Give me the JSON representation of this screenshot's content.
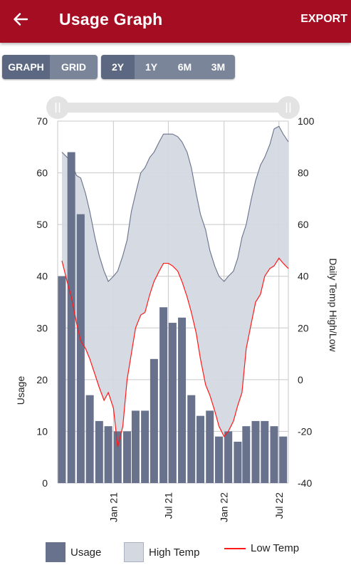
{
  "header": {
    "title": "Usage Graph",
    "export_label": "EXPORT",
    "back_icon": "arrow-left-icon",
    "bar_color": "#a50d23"
  },
  "view_toggle": [
    {
      "label": "GRAPH",
      "active": true
    },
    {
      "label": "GRID",
      "active": false
    }
  ],
  "range_toggle": [
    {
      "label": "2Y",
      "active": true
    },
    {
      "label": "1Y",
      "active": false
    },
    {
      "label": "6M",
      "active": false
    },
    {
      "label": "3M",
      "active": false
    }
  ],
  "slider": {
    "start": 0.0,
    "end": 1.0,
    "handle_icon": "drag-handle-icon"
  },
  "legend": [
    {
      "label": "Usage",
      "color": "#68728d",
      "kind": "bar"
    },
    {
      "label": "High Temp",
      "color": "#d4d8e0",
      "kind": "area"
    },
    {
      "label": "Low Temp",
      "color": "#ff1a1a",
      "kind": "line"
    }
  ],
  "chart_data": {
    "type": "bar",
    "title": "",
    "ylabel": "Usage",
    "y2label": "Daily Temp High/Low",
    "ylim": [
      0,
      70
    ],
    "y2lim": [
      -40,
      100
    ],
    "yticks": [
      0,
      10,
      20,
      30,
      40,
      50,
      60,
      70
    ],
    "y2ticks": [
      -40,
      -20,
      0,
      20,
      40,
      60,
      80,
      100
    ],
    "xlim": [
      "2020-07-01",
      "2022-08-01"
    ],
    "xticks": [
      {
        "date": "2021-01-01",
        "label": "Jan 21"
      },
      {
        "date": "2021-07-01",
        "label": "Jul 21"
      },
      {
        "date": "2022-01-01",
        "label": "Jan 22"
      },
      {
        "date": "2022-07-01",
        "label": "Jul 22"
      }
    ],
    "grid": true,
    "legend_position": "bottom",
    "series": [
      {
        "name": "Usage",
        "type": "bar",
        "axis": "left",
        "color": "#68728d",
        "dates": [
          "2020-07-15",
          "2020-08-15",
          "2020-09-15",
          "2020-10-15",
          "2020-11-15",
          "2020-12-15",
          "2021-01-15",
          "2021-02-15",
          "2021-03-15",
          "2021-04-15",
          "2021-05-15",
          "2021-06-15",
          "2021-07-15",
          "2021-08-15",
          "2021-09-15",
          "2021-10-15",
          "2021-11-15",
          "2021-12-15",
          "2022-01-15",
          "2022-02-15",
          "2022-03-15",
          "2022-04-15",
          "2022-05-15",
          "2022-06-15",
          "2022-07-15"
        ],
        "values": [
          40,
          64,
          52,
          17,
          12,
          11,
          10,
          10,
          14,
          14,
          24,
          34,
          31,
          32,
          17,
          13,
          14,
          9,
          10,
          8,
          11,
          12,
          12,
          11,
          9
        ]
      },
      {
        "name": "High Temp",
        "type": "area",
        "axis": "right",
        "color": "#d4d8e0",
        "dates": [
          "2020-07-15",
          "2020-08-01",
          "2020-08-15",
          "2020-09-01",
          "2020-09-15",
          "2020-10-01",
          "2020-10-15",
          "2020-11-01",
          "2020-11-15",
          "2020-12-01",
          "2020-12-15",
          "2021-01-01",
          "2021-01-15",
          "2021-02-01",
          "2021-02-15",
          "2021-03-01",
          "2021-03-15",
          "2021-04-01",
          "2021-04-15",
          "2021-05-01",
          "2021-05-15",
          "2021-06-01",
          "2021-06-15",
          "2021-07-01",
          "2021-07-15",
          "2021-08-01",
          "2021-08-15",
          "2021-09-01",
          "2021-09-15",
          "2021-10-01",
          "2021-10-15",
          "2021-11-01",
          "2021-11-15",
          "2021-12-01",
          "2021-12-15",
          "2022-01-01",
          "2022-01-15",
          "2022-02-01",
          "2022-02-15",
          "2022-03-01",
          "2022-03-15",
          "2022-04-01",
          "2022-04-15",
          "2022-05-01",
          "2022-05-15",
          "2022-06-01",
          "2022-06-15",
          "2022-07-01",
          "2022-07-15",
          "2022-08-01"
        ],
        "values": [
          88,
          86,
          84,
          79,
          78,
          72,
          65,
          55,
          48,
          42,
          38,
          40,
          42,
          48,
          54,
          65,
          72,
          80,
          82,
          86,
          88,
          92,
          95,
          95,
          95,
          94,
          92,
          88,
          82,
          72,
          64,
          58,
          50,
          44,
          40,
          38,
          40,
          42,
          47,
          55,
          60,
          70,
          77,
          83,
          86,
          91,
          97,
          98,
          95,
          92
        ]
      },
      {
        "name": "Low Temp",
        "type": "line",
        "axis": "right",
        "color": "#ff1a1a",
        "dates": [
          "2020-07-15",
          "2020-08-01",
          "2020-08-15",
          "2020-09-01",
          "2020-09-15",
          "2020-10-01",
          "2020-10-15",
          "2020-11-01",
          "2020-11-15",
          "2020-12-01",
          "2020-12-15",
          "2021-01-01",
          "2021-01-15",
          "2021-02-01",
          "2021-02-15",
          "2021-03-01",
          "2021-03-15",
          "2021-04-01",
          "2021-04-15",
          "2021-05-01",
          "2021-05-15",
          "2021-06-01",
          "2021-06-15",
          "2021-07-01",
          "2021-07-15",
          "2021-08-01",
          "2021-08-15",
          "2021-09-01",
          "2021-09-15",
          "2021-10-01",
          "2021-10-15",
          "2021-11-01",
          "2021-11-15",
          "2021-12-01",
          "2021-12-15",
          "2022-01-01",
          "2022-01-15",
          "2022-02-01",
          "2022-02-15",
          "2022-03-01",
          "2022-03-15",
          "2022-04-01",
          "2022-04-15",
          "2022-05-01",
          "2022-05-15",
          "2022-06-01",
          "2022-06-15",
          "2022-07-01",
          "2022-07-15",
          "2022-08-01"
        ],
        "values": [
          46,
          38,
          32,
          22,
          15,
          12,
          8,
          2,
          -3,
          -8,
          -5,
          -11,
          -26,
          -18,
          0,
          10,
          20,
          25,
          26,
          33,
          38,
          42,
          45,
          45,
          44,
          42,
          38,
          32,
          26,
          18,
          8,
          -2,
          -6,
          -12,
          -18,
          -22,
          -20,
          -16,
          -10,
          -5,
          12,
          22,
          30,
          33,
          40,
          43,
          44,
          47,
          45,
          43
        ]
      }
    ]
  }
}
